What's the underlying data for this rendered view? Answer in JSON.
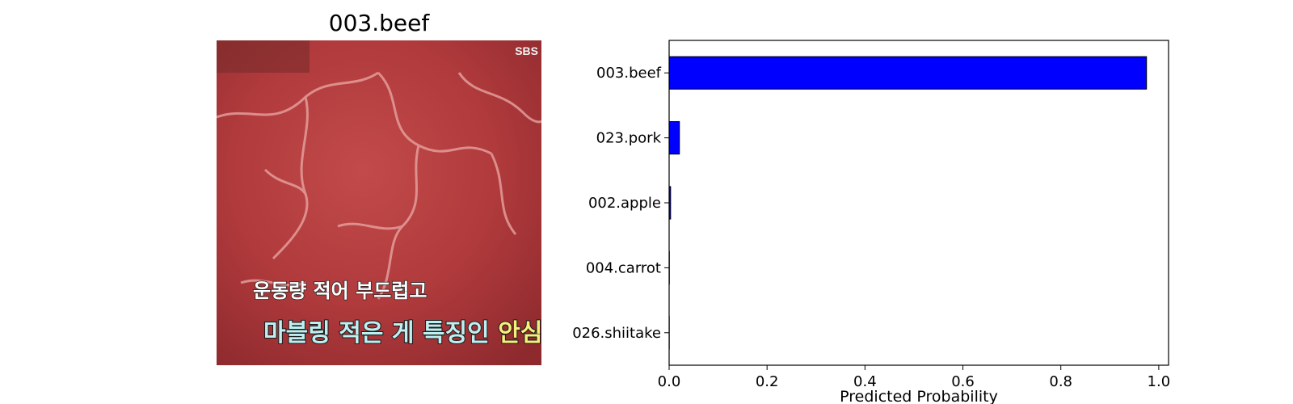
{
  "image_panel": {
    "title": "003.beef",
    "overlay_text_line1": "운동량 적어 부드럽고",
    "overlay_text_line2a": "마블링 적은 게 특징인 ",
    "overlay_text_line2b": "안심",
    "corner_logo": "SBS"
  },
  "chart_data": {
    "type": "bar",
    "orientation": "horizontal",
    "categories": [
      "003.beef",
      "023.pork",
      "002.apple",
      "004.carrot",
      "026.shiitake"
    ],
    "values": [
      0.975,
      0.021,
      0.003,
      0.0005,
      0.0003
    ],
    "xlabel": "Predicted Probability",
    "xlim": [
      0,
      1.02
    ],
    "xticks": [
      0.0,
      0.2,
      0.4,
      0.6,
      0.8,
      1.0
    ],
    "xtick_labels": [
      "0.0",
      "0.2",
      "0.4",
      "0.6",
      "0.8",
      "1.0"
    ],
    "bar_color": "#0000ff",
    "edge_color": "#000000",
    "grid": false
  }
}
